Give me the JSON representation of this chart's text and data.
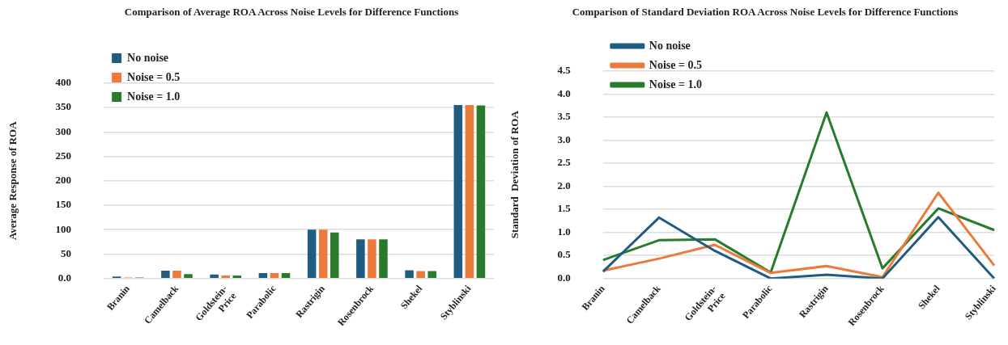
{
  "chart_data": [
    {
      "type": "bar",
      "title": "Comparison of Average ROA Across Noise Levels for Difference Functions",
      "ylabel": "Average Response of ROA",
      "categories": [
        "Branin",
        "Camelback",
        "Goldstein-Price",
        "Parabolic",
        "Rastrigin",
        "Rosenbrock",
        "Shekel",
        "Styblinski"
      ],
      "series": [
        {
          "name": "No noise",
          "color": "#1f5c80",
          "values": [
            4,
            16,
            8,
            11,
            100,
            80,
            17,
            355
          ]
        },
        {
          "name": "Noise = 0.5",
          "color": "#ea7b3a",
          "values": [
            2,
            16,
            6,
            11,
            100,
            80,
            15,
            355
          ]
        },
        {
          "name": "Noise = 1.0",
          "color": "#2a7a2e",
          "values": [
            2,
            9,
            6,
            11,
            94,
            80,
            15,
            354
          ]
        }
      ],
      "ylim": [
        0,
        400
      ],
      "yticks": [
        {
          "value": 0,
          "label": "0.0"
        },
        50,
        100,
        150,
        200,
        250,
        300,
        350,
        400
      ],
      "grid": "y",
      "legend": "top left"
    },
    {
      "type": "line",
      "title": "Comparison of Standard Deviation ROA Across Noise Levels for Difference Functions",
      "ylabel": "Standard  Deviation of ROA",
      "categories": [
        "Branin",
        "Camelback",
        "Goldstein-Price",
        "Parabolic",
        "Rastrigin",
        "Rosenbrock",
        "Shekel",
        "Styblinski"
      ],
      "series": [
        {
          "name": "No noise",
          "color": "#1f5c80",
          "values": [
            0.15,
            1.32,
            0.6,
            0.0,
            0.08,
            0.0,
            1.33,
            0.0
          ]
        },
        {
          "name": "Noise = 0.5",
          "color": "#ea7b3a",
          "values": [
            0.17,
            0.43,
            0.73,
            0.12,
            0.27,
            0.03,
            1.86,
            0.28
          ]
        },
        {
          "name": "Noise = 1.0",
          "color": "#2a7a2e",
          "values": [
            0.4,
            0.83,
            0.85,
            0.13,
            3.6,
            0.22,
            1.52,
            1.05
          ]
        }
      ],
      "ylim": [
        0,
        4.5
      ],
      "yticks": [
        {
          "value": 0,
          "label": "0.0"
        },
        {
          "value": 0.5,
          "label": "0.5"
        },
        {
          "value": 1,
          "label": "1.0"
        },
        {
          "value": 1.5,
          "label": "1.5"
        },
        {
          "value": 2,
          "label": "2.0"
        },
        {
          "value": 2.5,
          "label": "2.5"
        },
        {
          "value": 3,
          "label": "3.0"
        },
        {
          "value": 3.5,
          "label": "3.5"
        },
        {
          "value": 4,
          "label": "4.0"
        },
        {
          "value": 4.5,
          "label": "4.5"
        }
      ],
      "grid": "y",
      "legend": "top left",
      "marker": "none",
      "line_style": "solid"
    }
  ]
}
